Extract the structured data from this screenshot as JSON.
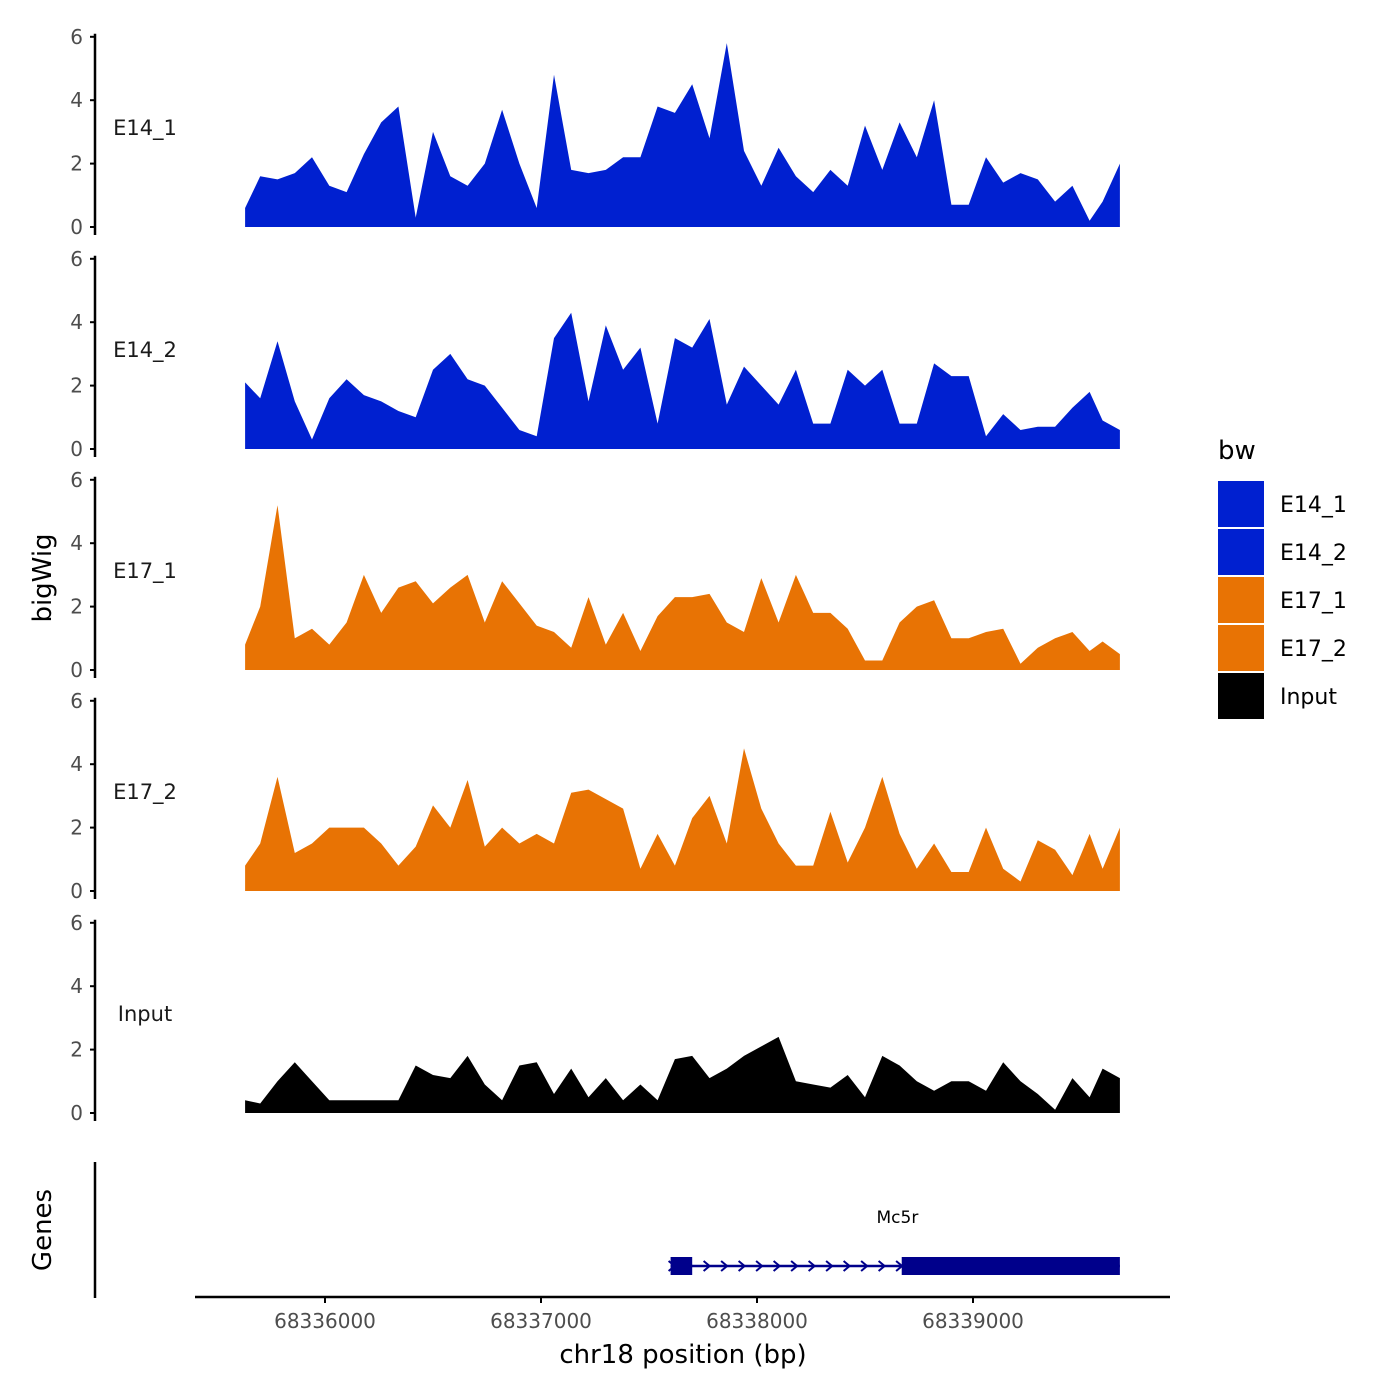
{
  "colors": {
    "E14": "#0020D0",
    "E17": "#E87304",
    "Input": "#000000",
    "gene": "#00008B",
    "axis": "#000000"
  },
  "chart_data": {
    "type": "area",
    "title": "",
    "xlabel": "chr18 position (bp)",
    "ylabel": "bigWig",
    "genes_axis_label": "Genes",
    "xlim": [
      68335400,
      68339960
    ],
    "ylim": [
      0,
      6
    ],
    "y_ticks": [
      "0",
      "2",
      "4",
      "6"
    ],
    "x_ticks": [
      {
        "value": 68336000,
        "label": "68336000"
      },
      {
        "value": 68337000,
        "label": "68337000"
      },
      {
        "value": 68338000,
        "label": "68338000"
      },
      {
        "value": 68339000,
        "label": "68339000"
      }
    ],
    "legend": {
      "title": "bw",
      "entries": [
        {
          "label": "E14_1",
          "color": "#0020D0"
        },
        {
          "label": "E14_2",
          "color": "#0020D0"
        },
        {
          "label": "E17_1",
          "color": "#E87304"
        },
        {
          "label": "E17_2",
          "color": "#E87304"
        },
        {
          "label": "Input",
          "color": "#000000"
        }
      ]
    },
    "x_positions": [
      68335630,
      68335700,
      68335780,
      68335860,
      68335940,
      68336020,
      68336100,
      68336180,
      68336260,
      68336340,
      68336420,
      68336500,
      68336580,
      68336660,
      68336740,
      68336820,
      68336900,
      68336980,
      68337060,
      68337140,
      68337220,
      68337300,
      68337380,
      68337460,
      68337540,
      68337620,
      68337700,
      68337780,
      68337860,
      68337940,
      68338020,
      68338100,
      68338180,
      68338260,
      68338340,
      68338420,
      68338500,
      68338580,
      68338660,
      68338740,
      68338820,
      68338900,
      68338980,
      68339060,
      68339140,
      68339220,
      68339300,
      68339380,
      68339460,
      68339540,
      68339600,
      68339680
    ],
    "series": [
      {
        "name": "E14_1",
        "color": "#0020D0",
        "values": [
          0.6,
          1.6,
          1.5,
          1.7,
          2.2,
          1.3,
          1.1,
          2.3,
          3.3,
          3.8,
          0.3,
          3.0,
          1.6,
          1.3,
          2.0,
          3.7,
          2.0,
          0.6,
          4.8,
          1.8,
          1.7,
          1.8,
          2.2,
          2.2,
          3.8,
          3.6,
          4.5,
          2.8,
          5.8,
          2.4,
          1.3,
          2.5,
          1.6,
          1.1,
          1.8,
          1.3,
          3.2,
          1.8,
          3.3,
          2.2,
          4.0,
          0.7,
          0.7,
          2.2,
          1.4,
          1.7,
          1.5,
          0.8,
          1.3,
          0.2,
          0.8,
          2.0
        ]
      },
      {
        "name": "E14_2",
        "color": "#0020D0",
        "values": [
          2.1,
          1.6,
          3.4,
          1.5,
          0.3,
          1.6,
          2.2,
          1.7,
          1.5,
          1.2,
          1.0,
          2.5,
          3.0,
          2.2,
          2.0,
          1.3,
          0.6,
          0.4,
          3.5,
          4.3,
          1.5,
          3.9,
          2.5,
          3.2,
          0.8,
          3.5,
          3.2,
          4.1,
          1.4,
          2.6,
          2.0,
          1.4,
          2.5,
          0.8,
          0.8,
          2.5,
          2.0,
          2.5,
          0.8,
          0.8,
          2.7,
          2.3,
          2.3,
          0.4,
          1.1,
          0.6,
          0.7,
          0.7,
          1.3,
          1.8,
          0.9,
          0.6
        ]
      },
      {
        "name": "E17_1",
        "color": "#E87304",
        "values": [
          0.8,
          2.0,
          5.2,
          1.0,
          1.3,
          0.8,
          1.5,
          3.0,
          1.8,
          2.6,
          2.8,
          2.1,
          2.6,
          3.0,
          1.5,
          2.8,
          2.1,
          1.4,
          1.2,
          0.7,
          2.3,
          0.8,
          1.8,
          0.6,
          1.7,
          2.3,
          2.3,
          2.4,
          1.5,
          1.2,
          2.9,
          1.5,
          3.0,
          1.8,
          1.8,
          1.3,
          0.3,
          0.3,
          1.5,
          2.0,
          2.2,
          1.0,
          1.0,
          1.2,
          1.3,
          0.2,
          0.7,
          1.0,
          1.2,
          0.6,
          0.9,
          0.5
        ]
      },
      {
        "name": "E17_2",
        "color": "#E87304",
        "values": [
          0.8,
          1.5,
          3.6,
          1.2,
          1.5,
          2.0,
          2.0,
          2.0,
          1.5,
          0.8,
          1.4,
          2.7,
          2.0,
          3.5,
          1.4,
          2.0,
          1.5,
          1.8,
          1.5,
          3.1,
          3.2,
          2.9,
          2.6,
          0.7,
          1.8,
          0.8,
          2.3,
          3.0,
          1.5,
          4.5,
          2.6,
          1.5,
          0.8,
          0.8,
          2.5,
          0.9,
          2.0,
          3.6,
          1.8,
          0.7,
          1.5,
          0.6,
          0.6,
          2.0,
          0.7,
          0.3,
          1.6,
          1.3,
          0.5,
          1.8,
          0.7,
          2.0
        ]
      },
      {
        "name": "Input",
        "color": "#000000",
        "values": [
          0.4,
          0.3,
          1.0,
          1.6,
          1.0,
          0.4,
          0.4,
          0.4,
          0.4,
          0.4,
          1.5,
          1.2,
          1.1,
          1.8,
          0.9,
          0.4,
          1.5,
          1.6,
          0.6,
          1.4,
          0.5,
          1.1,
          0.4,
          0.9,
          0.4,
          1.7,
          1.8,
          1.1,
          1.4,
          1.8,
          2.1,
          2.4,
          1.0,
          0.9,
          0.8,
          1.2,
          0.5,
          1.8,
          1.5,
          1.0,
          0.7,
          1.0,
          1.0,
          0.7,
          1.6,
          1.0,
          0.6,
          0.1,
          1.1,
          0.5,
          1.4,
          1.1
        ]
      }
    ],
    "genes": [
      {
        "name": "Mc5r",
        "strand": "+",
        "start": 68337600,
        "end": 68339680,
        "exons": [
          {
            "start": 68337600,
            "end": 68337700
          },
          {
            "start": 68338670,
            "end": 68339680
          }
        ]
      }
    ]
  }
}
